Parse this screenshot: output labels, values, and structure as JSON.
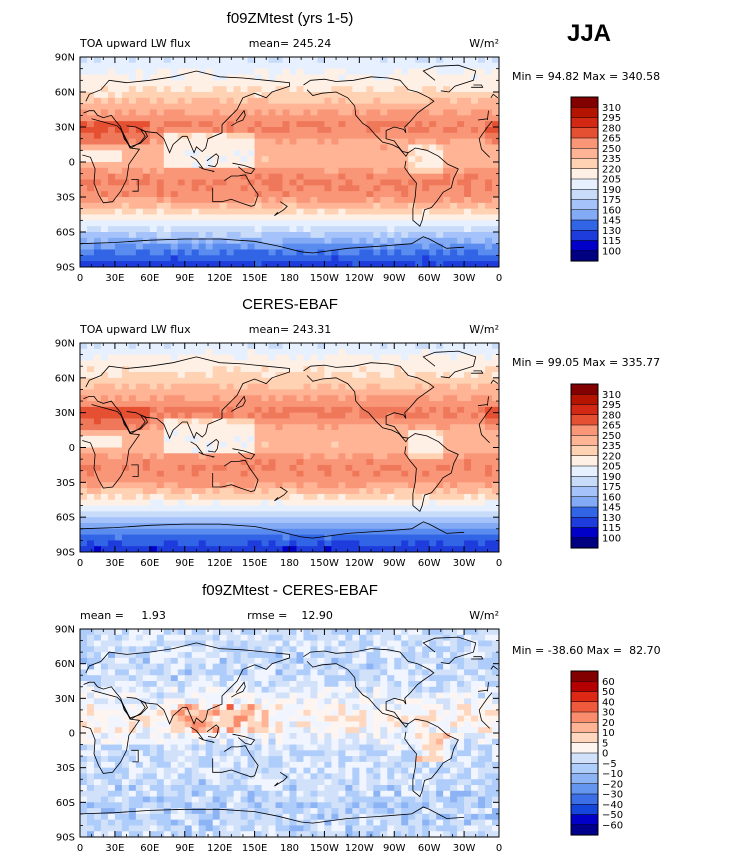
{
  "page": {
    "season": "JJA"
  },
  "axes": {
    "lat_labels": [
      "90N",
      "60N",
      "30N",
      "0",
      "30S",
      "60S",
      "90S"
    ],
    "lon_labels": [
      "0",
      "30E",
      "60E",
      "90E",
      "120E",
      "150E",
      "180",
      "150W",
      "120W",
      "90W",
      "60W",
      "30W",
      "0"
    ]
  },
  "colors": {
    "abs_scale": [
      "#000080",
      "#0000c8",
      "#1e3cdc",
      "#3264e6",
      "#5a8cf0",
      "#82aaf5",
      "#a5c3fa",
      "#c8dcfa",
      "#e6f0ff",
      "#fff0e6",
      "#ffd2b4",
      "#ffb496",
      "#fa9678",
      "#f0785a",
      "#e65032",
      "#d22814",
      "#b41400",
      "#820000"
    ],
    "diff_scale": [
      "#00008c",
      "#0000c8",
      "#1446dc",
      "#3c6ee6",
      "#6496f0",
      "#8cb4f5",
      "#afcdfa",
      "#d2e1fa",
      "#f0f5ff",
      "#fff5f0",
      "#ffd7be",
      "#ffb496",
      "#fa8c6e",
      "#f05a3c",
      "#dc2814",
      "#b40000",
      "#820000"
    ],
    "ocean": "#000000"
  },
  "panels": [
    {
      "id": "model",
      "title": "f09ZMtest (yrs 1-5)",
      "left_label": "TOA upward LW flux",
      "center_label": "mean= 245.24",
      "units": "W/m²",
      "stats": "Min =   94.82 Max = 340.58",
      "legend_levels": [
        "310",
        "295",
        "280",
        "265",
        "250",
        "235",
        "220",
        "205",
        "190",
        "175",
        "160",
        "145",
        "130",
        "115",
        "100"
      ]
    },
    {
      "id": "obs",
      "title": "CERES-EBAF",
      "left_label": "TOA upward LW flux",
      "center_label": "mean= 243.31",
      "units": "W/m²",
      "stats": "Min =   99.05 Max = 335.77",
      "legend_levels": [
        "310",
        "295",
        "280",
        "265",
        "250",
        "235",
        "220",
        "205",
        "190",
        "175",
        "160",
        "145",
        "130",
        "115",
        "100"
      ]
    },
    {
      "id": "diff",
      "title": "f09ZMtest - CERES-EBAF",
      "left_label": "mean =     1.93",
      "center_label": "rmse =    12.90",
      "units": "W/m²",
      "stats": "Min = -38.60 Max =  82.70",
      "legend_levels": [
        "60",
        "50",
        "40",
        "30",
        "20",
        "10",
        "5",
        "0",
        "−5",
        "−10",
        "−20",
        "−30",
        "−40",
        "−50",
        "−60"
      ]
    }
  ],
  "chart_data": [
    {
      "type": "heatmap",
      "title": "f09ZMtest (yrs 1-5)",
      "variable": "TOA upward LW flux",
      "units": "W/m2",
      "mean": 245.24,
      "min": 94.82,
      "max": 340.58,
      "x_range": [
        0,
        360
      ],
      "y_range": [
        -90,
        90
      ],
      "contour_levels": [
        100,
        115,
        130,
        145,
        160,
        175,
        190,
        205,
        220,
        235,
        250,
        265,
        280,
        295,
        310
      ],
      "zonal_profile": {
        "lat": [
          90,
          75,
          60,
          45,
          30,
          15,
          0,
          -15,
          -30,
          -45,
          -60,
          -75,
          -90
        ],
        "value": [
          205,
          222,
          235,
          262,
          282,
          260,
          255,
          282,
          275,
          232,
          195,
          150,
          120
        ]
      }
    },
    {
      "type": "heatmap",
      "title": "CERES-EBAF",
      "variable": "TOA upward LW flux",
      "units": "W/m2",
      "mean": 243.31,
      "min": 99.05,
      "max": 335.77,
      "x_range": [
        0,
        360
      ],
      "y_range": [
        -90,
        90
      ],
      "contour_levels": [
        100,
        115,
        130,
        145,
        160,
        175,
        190,
        205,
        220,
        235,
        250,
        265,
        280,
        295,
        310
      ],
      "zonal_profile": {
        "lat": [
          90,
          75,
          60,
          45,
          30,
          15,
          0,
          -15,
          -30,
          -45,
          -60,
          -75,
          -90
        ],
        "value": [
          205,
          225,
          238,
          262,
          285,
          258,
          255,
          280,
          272,
          230,
          192,
          145,
          115
        ]
      }
    },
    {
      "type": "heatmap",
      "title": "f09ZMtest - CERES-EBAF",
      "variable": "TOA upward LW flux difference",
      "units": "W/m2",
      "mean": 1.93,
      "rmse": 12.9,
      "min": -38.6,
      "max": 82.7,
      "x_range": [
        0,
        360
      ],
      "y_range": [
        -90,
        90
      ],
      "contour_levels": [
        -60,
        -50,
        -40,
        -30,
        -20,
        -10,
        -5,
        0,
        5,
        10,
        20,
        30,
        40,
        50,
        60
      ],
      "zonal_profile": {
        "lat": [
          90,
          75,
          60,
          45,
          30,
          15,
          0,
          -15,
          -30,
          -45,
          -60,
          -75,
          -90
        ],
        "value": [
          -2,
          -3,
          -4,
          -3,
          2,
          8,
          4,
          -3,
          -2,
          -4,
          -6,
          -5,
          -4
        ]
      }
    }
  ]
}
